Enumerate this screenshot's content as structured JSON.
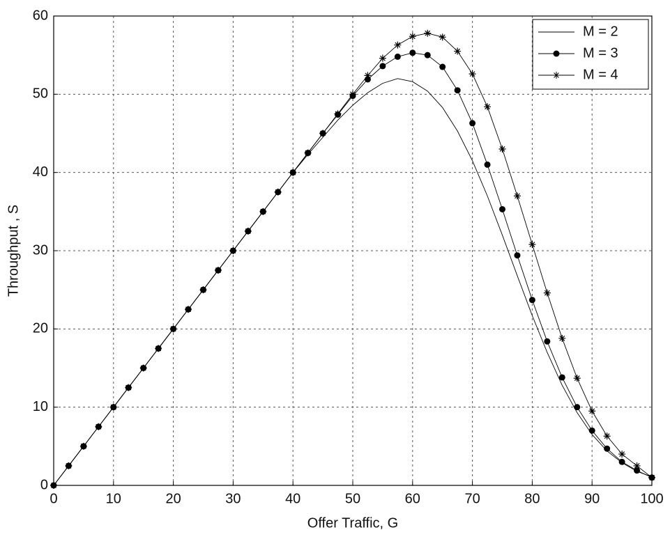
{
  "chart_data": {
    "type": "line",
    "xlabel": "Offer Traffic, G",
    "ylabel": "Throughput , S",
    "x": [
      0,
      2.5,
      5,
      7.5,
      10,
      12.5,
      15,
      17.5,
      20,
      22.5,
      25,
      27.5,
      30,
      32.5,
      35,
      37.5,
      40,
      42.5,
      45,
      47.5,
      50,
      52.5,
      55,
      57.5,
      60,
      62.5,
      65,
      67.5,
      70,
      72.5,
      75,
      77.5,
      80,
      82.5,
      85,
      87.5,
      90,
      92.5,
      95,
      97.5,
      100
    ],
    "series": [
      {
        "name": "M = 2",
        "color": "#000000",
        "marker": "none",
        "values": [
          0,
          2.5,
          5,
          7.5,
          10,
          12.5,
          15,
          17.5,
          20,
          22.5,
          25,
          27.5,
          30,
          32.5,
          35,
          37.5,
          40,
          42.3,
          44.5,
          46.7,
          48.6,
          50.2,
          51.4,
          52,
          51.6,
          50.4,
          48.3,
          45.3,
          41.5,
          37,
          32,
          26.8,
          21.7,
          17,
          12.8,
          9.3,
          6.5,
          4.4,
          2.9,
          1.8,
          1.1
        ]
      },
      {
        "name": "M = 3",
        "color": "#000000",
        "marker": "circle",
        "values": [
          0,
          2.5,
          5,
          7.5,
          10,
          12.5,
          15,
          17.5,
          20,
          22.5,
          25,
          27.5,
          30,
          32.5,
          35,
          37.5,
          40,
          42.5,
          45,
          47.4,
          49.8,
          51.9,
          53.6,
          54.8,
          55.3,
          55,
          53.5,
          50.5,
          46.3,
          41,
          35.3,
          29.4,
          23.7,
          18.4,
          13.8,
          10,
          7,
          4.7,
          3,
          1.9,
          1
        ]
      },
      {
        "name": "M = 4",
        "color": "#000000",
        "marker": "star",
        "values": [
          0,
          2.5,
          5,
          7.5,
          10,
          12.5,
          15,
          17.5,
          20,
          22.5,
          25,
          27.5,
          30,
          32.5,
          35,
          37.5,
          40,
          42.5,
          45,
          47.5,
          50,
          52.4,
          54.6,
          56.3,
          57.4,
          57.8,
          57.3,
          55.5,
          52.6,
          48.4,
          43,
          37,
          30.8,
          24.6,
          18.8,
          13.7,
          9.5,
          6.3,
          4,
          2.5,
          1
        ]
      }
    ],
    "xlim": [
      0,
      100
    ],
    "xticks": [
      0,
      10,
      20,
      30,
      40,
      50,
      60,
      70,
      80,
      90,
      100
    ],
    "ylim": [
      0,
      60
    ],
    "yticks": [
      0,
      10,
      20,
      30,
      40,
      50,
      60
    ],
    "grid": true,
    "legend": "upper right"
  }
}
